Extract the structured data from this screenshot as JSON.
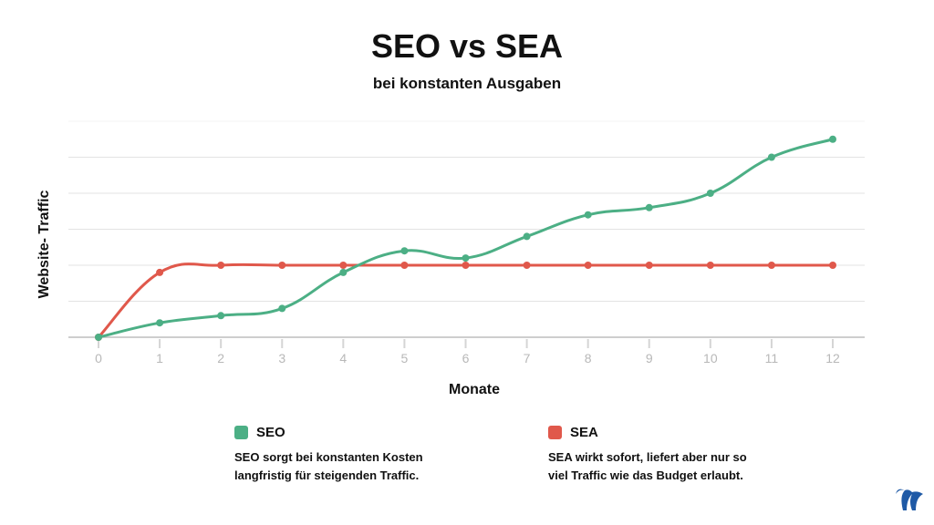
{
  "chart_data": {
    "type": "line",
    "title": "SEO vs SEA",
    "subtitle": "bei konstanten Ausgaben",
    "xlabel": "Monate",
    "ylabel": "Website- Traffic",
    "x": [
      0,
      1,
      2,
      3,
      4,
      5,
      6,
      7,
      8,
      9,
      10,
      11,
      12
    ],
    "ylim": [
      0,
      6
    ],
    "y_tick_labels_shown": false,
    "grid": true,
    "series": [
      {
        "name": "SEO",
        "color": "#4caf85",
        "values": [
          0,
          0.4,
          0.6,
          0.8,
          1.8,
          2.4,
          2.2,
          2.8,
          3.4,
          3.6,
          4.0,
          5.0,
          5.5
        ],
        "description": "SEO sorgt bei konstanten Kosten langfristig für steigenden Traffic."
      },
      {
        "name": "SEA",
        "color": "#e0584b",
        "values": [
          0,
          1.8,
          2,
          2,
          2,
          2,
          2,
          2,
          2,
          2,
          2,
          2,
          2
        ],
        "description": "SEA wirkt sofort, liefert aber nur so viel Traffic wie das Budget erlaubt."
      }
    ],
    "legend_position": "bottom"
  },
  "legend": {
    "seo": {
      "name": "SEO",
      "line1": "SEO sorgt bei konstanten Kosten",
      "line2": "langfristig für steigenden Traffic."
    },
    "sea": {
      "name": "SEA",
      "line1": "SEA wirkt sofort, liefert aber nur so",
      "line2": "viel Traffic wie das Budget erlaubt."
    }
  },
  "logo": {
    "icon": "brand-w-logo",
    "color": "#1f5aa6"
  }
}
